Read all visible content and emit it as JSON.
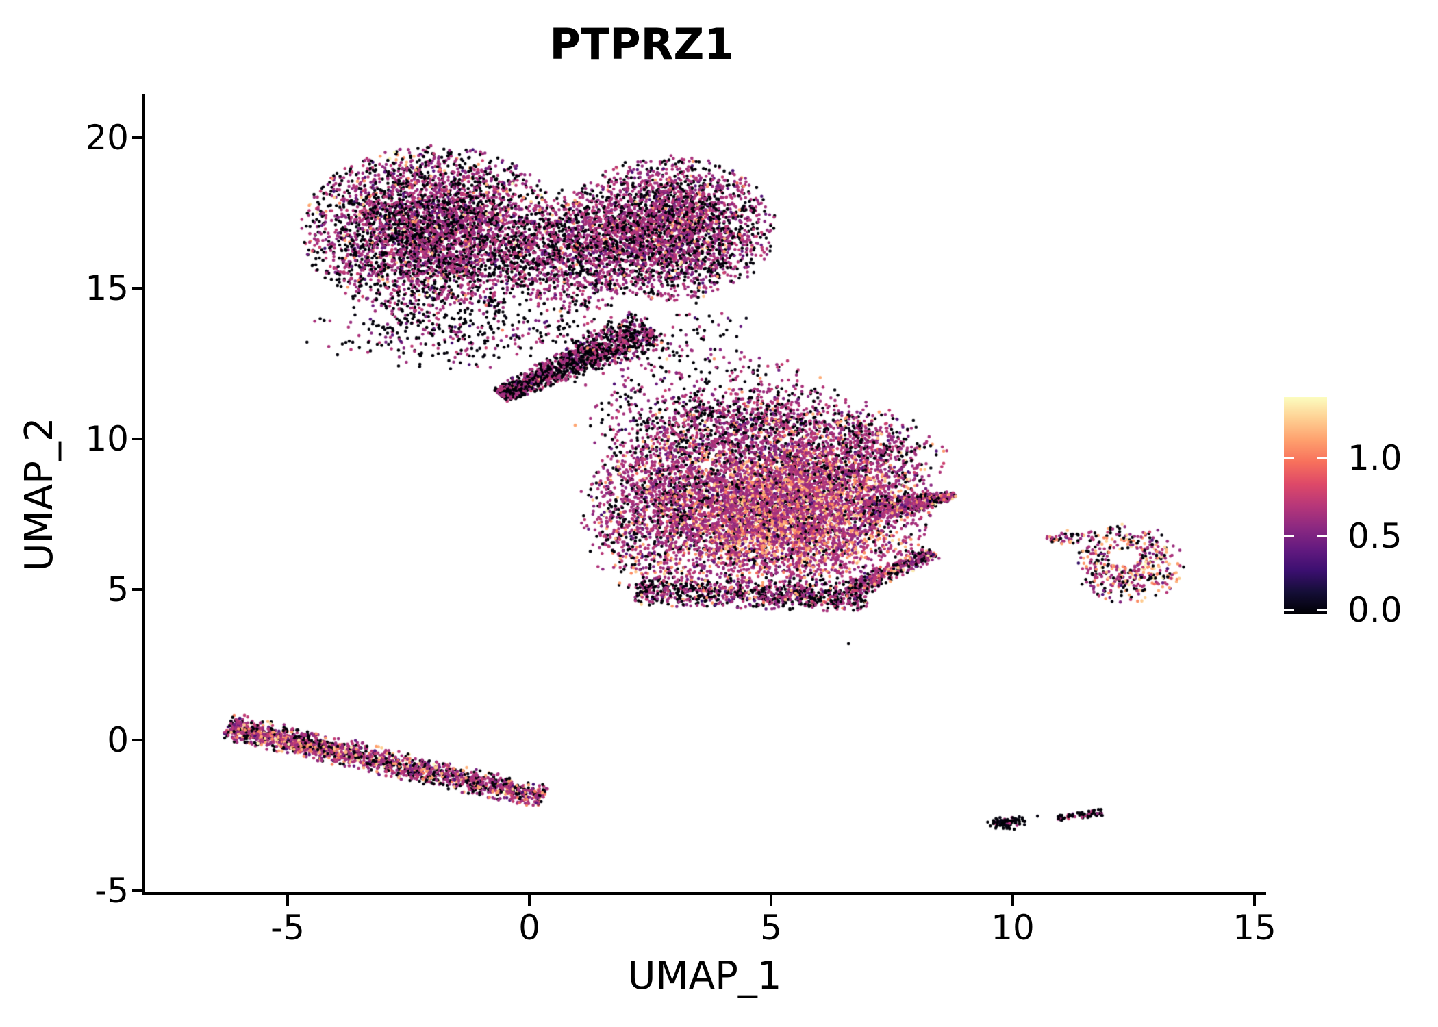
{
  "title": "PTPRZ1",
  "axes": {
    "x_label": "UMAP_1",
    "y_label": "UMAP_2",
    "x_ticks": [
      -5,
      0,
      5,
      10,
      15
    ],
    "y_ticks": [
      -5,
      0,
      5,
      10,
      15,
      20
    ]
  },
  "legend": {
    "labels": [
      "1.0",
      "0.5",
      "0.0"
    ],
    "values": [
      1.0,
      0.5,
      0.0
    ],
    "max_value": 1.39
  },
  "colors": {
    "background": "#ffffff",
    "axis": "#000000",
    "colorbar_tick": "#ffffff",
    "colormap": "magma",
    "stops": [
      "#000004",
      "#140E36",
      "#3B0F70",
      "#641A80",
      "#8C2981",
      "#B73779",
      "#DE4968",
      "#F7705C",
      "#FE9F6D",
      "#FECF92",
      "#FCFDBF"
    ]
  },
  "chart_data": {
    "type": "scatter",
    "title": "PTPRZ1",
    "xlabel": "UMAP_1",
    "ylabel": "UMAP_2",
    "xlim": [
      -8.0,
      15.2
    ],
    "ylim": [
      -5.1,
      21.4
    ],
    "grid": false,
    "legend_position": "right",
    "point_radius_px": 2.3,
    "value_bins": [
      {
        "name": "zero",
        "mode": "half",
        "base": 0.002,
        "sd": 0.012,
        "max": 0.05
      },
      {
        "name": "low",
        "mode": "norm",
        "center": 0.3,
        "sd": 0.05,
        "min": 0.17,
        "max": 0.385
      },
      {
        "name": "mid",
        "mode": "norm",
        "center": 0.465,
        "sd": 0.04,
        "min": 0.385,
        "max": 0.56
      },
      {
        "name": "high",
        "mode": "norm",
        "center": 0.8,
        "sd": 0.055,
        "min": 0.68,
        "max": 0.9
      },
      {
        "name": "top",
        "mode": "norm",
        "center": 0.945,
        "sd": 0.035,
        "min": 0.9,
        "max": 1.0
      }
    ],
    "clusters": [
      {
        "name": "top-left-lobe",
        "type": "blob",
        "cx": -2.0,
        "cy": 16.9,
        "sx": 1.3,
        "sy": 1.35,
        "clip": 2.1,
        "n": 4300,
        "mix": [
          0.4,
          0.05,
          0.51,
          0.035,
          0.005
        ]
      },
      {
        "name": "top-right-lobe",
        "type": "blob",
        "cx": 2.9,
        "cy": 17.0,
        "sx": 1.05,
        "sy": 1.15,
        "clip": 2.1,
        "n": 3100,
        "mix": [
          0.34,
          0.05,
          0.565,
          0.04,
          0.005
        ]
      },
      {
        "name": "top-waist",
        "type": "blob",
        "cx": 0.9,
        "cy": 16.2,
        "sx": 0.75,
        "sy": 1.05,
        "clip": 2.0,
        "n": 1000,
        "mix": [
          0.42,
          0.05,
          0.5,
          0.03,
          0
        ]
      },
      {
        "name": "chin-spray",
        "type": "blob",
        "cx": -1.5,
        "cy": 13.6,
        "sx": 1.5,
        "sy": 0.6,
        "clip": 2.2,
        "n": 380,
        "mix": [
          0.6,
          0.06,
          0.33,
          0.01,
          0
        ]
      },
      {
        "name": "beak",
        "type": "band",
        "x1": -0.6,
        "y1": 11.45,
        "x2": 2.5,
        "y2": 13.7,
        "w1": 0.45,
        "w2": 1.3,
        "bias": 1.25,
        "n": 1500,
        "mix": [
          0.5,
          0.06,
          0.42,
          0.02,
          0
        ]
      },
      {
        "name": "neck-sparse",
        "type": "blob",
        "cx": 3.0,
        "cy": 12.5,
        "sx": 1.05,
        "sy": 0.95,
        "clip": 2.2,
        "n": 230,
        "mix": [
          0.48,
          0.06,
          0.44,
          0.02,
          0
        ]
      },
      {
        "name": "neck-sparse-2",
        "type": "blob",
        "cx": 4.9,
        "cy": 11.4,
        "sx": 0.75,
        "sy": 0.65,
        "clip": 2.0,
        "n": 120,
        "mix": [
          0.4,
          0.05,
          0.53,
          0.02,
          0
        ]
      },
      {
        "name": "mid-main",
        "type": "blob",
        "cx": 4.8,
        "cy": 7.9,
        "sx": 1.75,
        "sy": 1.65,
        "clip": 2.05,
        "n": 5300,
        "mix": [
          0.14,
          0.04,
          0.66,
          0.15,
          0.01
        ]
      },
      {
        "name": "mid-orange-core",
        "type": "blob",
        "cx": 5.4,
        "cy": 7.5,
        "sx": 1.15,
        "sy": 1.05,
        "clip": 2.0,
        "n": 1500,
        "mix": [
          0.05,
          0.02,
          0.45,
          0.42,
          0.06
        ]
      },
      {
        "name": "mid-top-fringe",
        "type": "blob",
        "cx": 4.2,
        "cy": 10.5,
        "sx": 1.55,
        "sy": 0.65,
        "clip": 2.1,
        "n": 750,
        "mix": [
          0.42,
          0.06,
          0.49,
          0.03,
          0
        ]
      },
      {
        "name": "mid-bottom-fringe",
        "type": "band",
        "x1": 2.2,
        "y1": 5.0,
        "x2": 7.0,
        "y2": 4.7,
        "w1": 0.9,
        "w2": 0.9,
        "n": 820,
        "mix": [
          0.44,
          0.05,
          0.43,
          0.07,
          0.01
        ]
      },
      {
        "name": "mid-left-edge",
        "type": "blob",
        "cx": 2.4,
        "cy": 7.7,
        "sx": 0.65,
        "sy": 1.35,
        "clip": 2.1,
        "n": 620,
        "mix": [
          0.34,
          0.06,
          0.54,
          0.05,
          0.01
        ]
      },
      {
        "name": "mid-upper-right",
        "type": "blob",
        "cx": 6.9,
        "cy": 9.5,
        "sx": 0.85,
        "sy": 0.75,
        "clip": 2.1,
        "n": 520,
        "mix": [
          0.3,
          0.05,
          0.6,
          0.05,
          0
        ]
      },
      {
        "name": "mid-right-beak",
        "type": "band",
        "x1": 6.9,
        "y1": 7.5,
        "x2": 8.8,
        "y2": 8.15,
        "w1": 1.1,
        "w2": 0.2,
        "bias": 0.85,
        "n": 620,
        "mix": [
          0.2,
          0.04,
          0.62,
          0.13,
          0.01
        ]
      },
      {
        "name": "mid-hook",
        "type": "band",
        "x1": 6.6,
        "y1": 4.9,
        "x2": 8.35,
        "y2": 6.25,
        "w1": 0.55,
        "w2": 0.45,
        "n": 360,
        "mix": [
          0.3,
          0.05,
          0.52,
          0.12,
          0.01
        ]
      },
      {
        "name": "lone-dot-mid",
        "type": "blob",
        "cx": 6.6,
        "cy": 3.2,
        "sx": 0.02,
        "sy": 0.02,
        "clip": 2.0,
        "n": 1,
        "mix": [
          1,
          0,
          0,
          0,
          0
        ]
      },
      {
        "name": "bottom-left-band",
        "type": "band",
        "x1": -6.25,
        "y1": 0.45,
        "x2": 0.3,
        "y2": -1.9,
        "w1": 0.85,
        "w2": 0.7,
        "n": 1700,
        "mix": [
          0.27,
          0.05,
          0.5,
          0.16,
          0.02
        ]
      },
      {
        "name": "bottom-left-orange",
        "type": "band",
        "x1": -6.15,
        "y1": 0.35,
        "x2": -3.5,
        "y2": -0.55,
        "w1": 0.45,
        "w2": 0.5,
        "n": 280,
        "mix": [
          0.12,
          0.03,
          0.45,
          0.37,
          0.03
        ]
      },
      {
        "name": "right-cluster",
        "type": "blob",
        "cx": 12.4,
        "cy": 5.85,
        "sx": 0.6,
        "sy": 0.7,
        "clip": 1.9,
        "n": 430,
        "mix": [
          0.24,
          0.04,
          0.36,
          0.3,
          0.06
        ],
        "hole": {
          "cx": 12.3,
          "cy": 6.08,
          "rx": 0.34,
          "ry": 0.27
        }
      },
      {
        "name": "right-cluster-tail",
        "type": "band",
        "x1": 10.7,
        "y1": 6.6,
        "x2": 11.7,
        "y2": 6.9,
        "w1": 0.28,
        "w2": 0.5,
        "n": 55,
        "mix": [
          0.3,
          0.05,
          0.44,
          0.21,
          0
        ]
      },
      {
        "name": "bottom-right-blob-1",
        "type": "blob",
        "cx": 9.85,
        "cy": -2.72,
        "sx": 0.21,
        "sy": 0.13,
        "clip": 2.0,
        "n": 85,
        "mix": [
          0.84,
          0.02,
          0.14,
          0,
          0
        ]
      },
      {
        "name": "bottom-right-dot",
        "type": "blob",
        "cx": 10.5,
        "cy": -2.56,
        "sx": 0.02,
        "sy": 0.02,
        "clip": 2.0,
        "n": 1,
        "mix": [
          1,
          0,
          0,
          0,
          0
        ]
      },
      {
        "name": "bottom-right-blob-2",
        "type": "band",
        "x1": 10.92,
        "y1": -2.6,
        "x2": 11.85,
        "y2": -2.38,
        "w1": 0.18,
        "w2": 0.22,
        "n": 70,
        "mix": [
          0.7,
          0.04,
          0.26,
          0,
          0
        ]
      }
    ]
  }
}
